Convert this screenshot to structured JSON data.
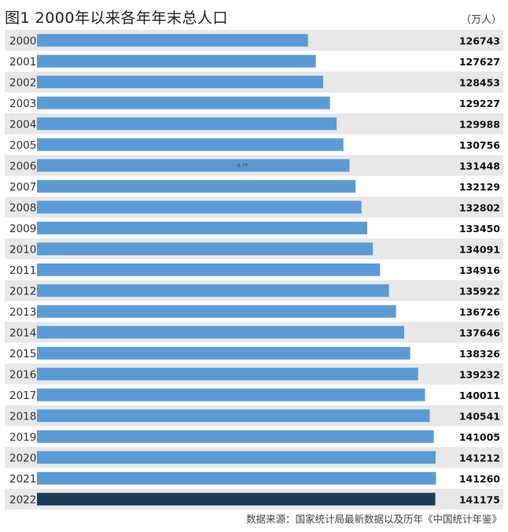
{
  "title": "图1 2000年以来各年年末总人口",
  "unit": "（万人）",
  "source": "数据来源：国家统计局最新数据以及历年《中国统计年鉴》",
  "colors": {
    "bar": "#5b9bd5",
    "bar_highlight": "#1f3b5a",
    "row_shade": "#e8e8e8",
    "row_plain": "#ffffff"
  },
  "chart_data": {
    "type": "bar",
    "orientation": "horizontal",
    "title": "图1 2000年以来各年年末总人口",
    "unit": "（万人）",
    "categories": [
      "2000",
      "2001",
      "2002",
      "2003",
      "2004",
      "2005",
      "2006",
      "2007",
      "2008",
      "2009",
      "2010",
      "2011",
      "2012",
      "2013",
      "2014",
      "2015",
      "2016",
      "2017",
      "2018",
      "2019",
      "2020",
      "2021",
      "2022"
    ],
    "values": [
      126743,
      127627,
      128453,
      129227,
      129988,
      130756,
      131448,
      132129,
      132802,
      133450,
      134091,
      134916,
      135922,
      136726,
      137646,
      138326,
      139232,
      140011,
      140541,
      141005,
      141212,
      141260,
      141175
    ],
    "highlight_index": 22,
    "annotations": [
      {
        "category": "2006",
        "text": "6.77"
      }
    ],
    "xlim": [
      96000,
      143000
    ],
    "grid": false,
    "legend": "none"
  }
}
